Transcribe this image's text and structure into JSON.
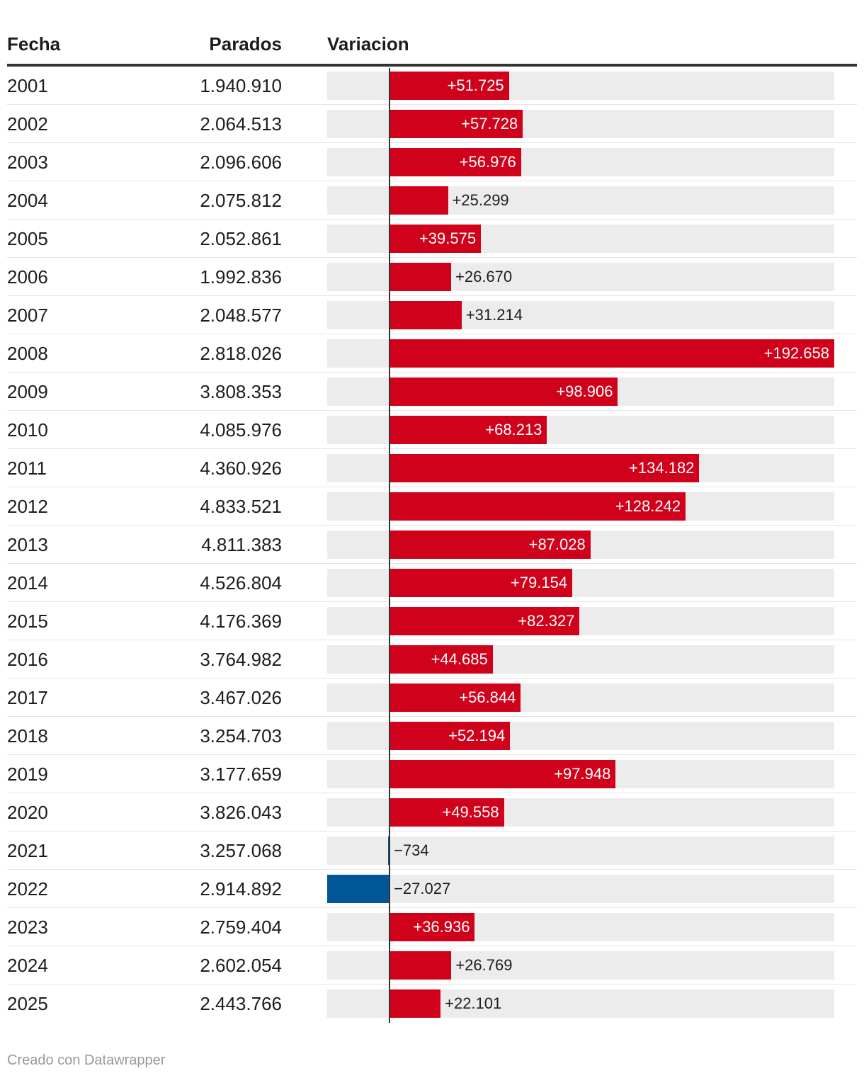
{
  "table": {
    "headers": {
      "fecha": "Fecha",
      "parados": "Parados",
      "variacion": "Variacion"
    }
  },
  "footer": {
    "credit": "Creado con Datawrapper"
  },
  "colors": {
    "positive": "#d0021b",
    "negative": "#005696",
    "background_bar": "#ececec"
  },
  "chart_data": {
    "type": "table",
    "columns": [
      "Fecha",
      "Parados",
      "Variacion"
    ],
    "domain": [
      -27027,
      192658
    ],
    "rows": [
      {
        "fecha": "2001",
        "parados": "1.940.910",
        "variacion": 51725,
        "label": "+51.725"
      },
      {
        "fecha": "2002",
        "parados": "2.064.513",
        "variacion": 57728,
        "label": "+57.728"
      },
      {
        "fecha": "2003",
        "parados": "2.096.606",
        "variacion": 56976,
        "label": "+56.976"
      },
      {
        "fecha": "2004",
        "parados": "2.075.812",
        "variacion": 25299,
        "label": "+25.299"
      },
      {
        "fecha": "2005",
        "parados": "2.052.861",
        "variacion": 39575,
        "label": "+39.575"
      },
      {
        "fecha": "2006",
        "parados": "1.992.836",
        "variacion": 26670,
        "label": "+26.670"
      },
      {
        "fecha": "2007",
        "parados": "2.048.577",
        "variacion": 31214,
        "label": "+31.214"
      },
      {
        "fecha": "2008",
        "parados": "2.818.026",
        "variacion": 192658,
        "label": "+192.658"
      },
      {
        "fecha": "2009",
        "parados": "3.808.353",
        "variacion": 98906,
        "label": "+98.906"
      },
      {
        "fecha": "2010",
        "parados": "4.085.976",
        "variacion": 68213,
        "label": "+68.213"
      },
      {
        "fecha": "2011",
        "parados": "4.360.926",
        "variacion": 134182,
        "label": "+134.182"
      },
      {
        "fecha": "2012",
        "parados": "4.833.521",
        "variacion": 128242,
        "label": "+128.242"
      },
      {
        "fecha": "2013",
        "parados": "4.811.383",
        "variacion": 87028,
        "label": "+87.028"
      },
      {
        "fecha": "2014",
        "parados": "4.526.804",
        "variacion": 79154,
        "label": "+79.154"
      },
      {
        "fecha": "2015",
        "parados": "4.176.369",
        "variacion": 82327,
        "label": "+82.327"
      },
      {
        "fecha": "2016",
        "parados": "3.764.982",
        "variacion": 44685,
        "label": "+44.685"
      },
      {
        "fecha": "2017",
        "parados": "3.467.026",
        "variacion": 56844,
        "label": "+56.844"
      },
      {
        "fecha": "2018",
        "parados": "3.254.703",
        "variacion": 52194,
        "label": "+52.194"
      },
      {
        "fecha": "2019",
        "parados": "3.177.659",
        "variacion": 97948,
        "label": "+97.948"
      },
      {
        "fecha": "2020",
        "parados": "3.826.043",
        "variacion": 49558,
        "label": "+49.558"
      },
      {
        "fecha": "2021",
        "parados": "3.257.068",
        "variacion": -734,
        "label": "−734"
      },
      {
        "fecha": "2022",
        "parados": "2.914.892",
        "variacion": -27027,
        "label": "−27.027"
      },
      {
        "fecha": "2023",
        "parados": "2.759.404",
        "variacion": 36936,
        "label": "+36.936"
      },
      {
        "fecha": "2024",
        "parados": "2.602.054",
        "variacion": 26769,
        "label": "+26.769"
      },
      {
        "fecha": "2025",
        "parados": "2.443.766",
        "variacion": 22101,
        "label": "+22.101"
      }
    ]
  }
}
